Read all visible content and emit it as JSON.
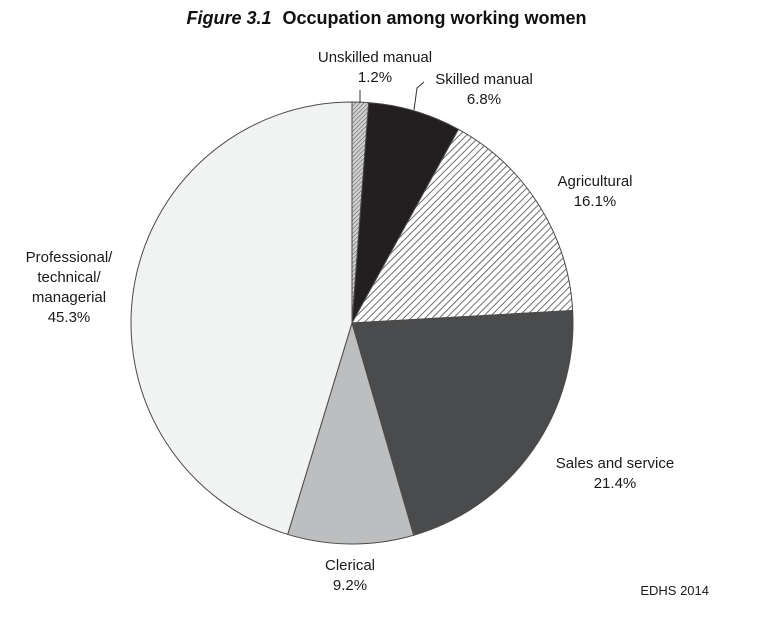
{
  "figure_label": "Figure 3.1",
  "title": "Occupation among working women",
  "source": "EDHS 2014",
  "chart_data": {
    "type": "pie",
    "title": "Occupation among working women",
    "slices": [
      {
        "label": "Unskilled manual",
        "value": 1.2,
        "display": "1.2%",
        "color": "#9a9a9a",
        "pattern": "fine-hatch"
      },
      {
        "label": "Skilled manual",
        "value": 6.8,
        "display": "6.8%",
        "color": "#231f20",
        "pattern": "solid"
      },
      {
        "label": "Agricultural",
        "value": 16.1,
        "display": "16.1%",
        "color": "#bdbdbd",
        "pattern": "diagonal-hatch"
      },
      {
        "label": "Sales and service",
        "value": 21.4,
        "display": "21.4%",
        "color": "#4a4b4d",
        "pattern": "solid"
      },
      {
        "label": "Clerical",
        "value": 9.2,
        "display": "9.2%",
        "color": "#bcbec0",
        "pattern": "solid"
      },
      {
        "label": "Professional/ technical/ managerial",
        "value": 45.3,
        "display": "45.3%",
        "color": "#f1f2f2",
        "pattern": "solid"
      }
    ],
    "start": "12 o'clock",
    "direction": "clockwise"
  }
}
